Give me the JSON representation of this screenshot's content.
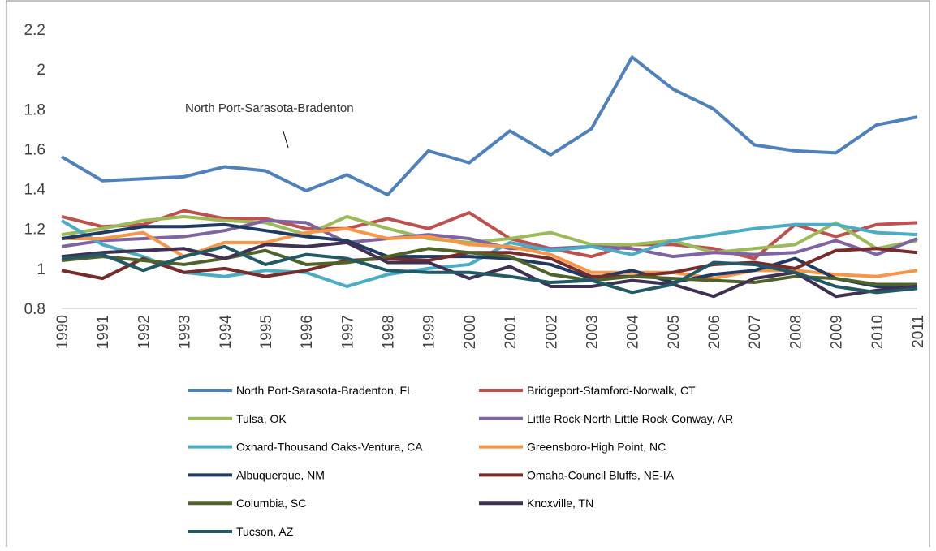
{
  "chart_data": {
    "type": "line",
    "annotation": "North Port-Sarasota-Bradenton",
    "categories": [
      "1990",
      "1991",
      "1992",
      "1993",
      "1994",
      "1995",
      "1996",
      "1997",
      "1998",
      "1999",
      "2000",
      "2001",
      "2002",
      "2003",
      "2004",
      "2005",
      "2006",
      "2007",
      "2008",
      "2009",
      "2010",
      "2011"
    ],
    "ylim": [
      0.8,
      2.2
    ],
    "yticks": [
      0.8,
      1,
      1.2,
      1.4,
      1.6,
      1.8,
      2,
      2.2
    ],
    "grid": false,
    "series": [
      {
        "name": "North Port-Sarasota-Bradenton, FL",
        "color": "#4f81bd",
        "values": [
          1.56,
          1.44,
          1.45,
          1.46,
          1.51,
          1.49,
          1.39,
          1.47,
          1.37,
          1.59,
          1.53,
          1.69,
          1.57,
          1.7,
          2.06,
          1.9,
          1.8,
          1.62,
          1.59,
          1.58,
          1.72,
          1.76
        ]
      },
      {
        "name": "Bridgeport-Stamford-Norwalk, CT",
        "color": "#c0504d",
        "values": [
          1.26,
          1.21,
          1.22,
          1.29,
          1.25,
          1.25,
          1.2,
          1.2,
          1.25,
          1.2,
          1.28,
          1.15,
          1.1,
          1.06,
          1.12,
          1.12,
          1.1,
          1.05,
          1.22,
          1.16,
          1.22,
          1.23
        ]
      },
      {
        "name": "Tulsa, OK",
        "color": "#9bbb59",
        "values": [
          1.17,
          1.2,
          1.24,
          1.26,
          1.24,
          1.23,
          1.17,
          1.26,
          1.2,
          1.15,
          1.13,
          1.15,
          1.18,
          1.12,
          1.12,
          1.14,
          1.08,
          1.1,
          1.12,
          1.23,
          1.1,
          1.14
        ]
      },
      {
        "name": "Little Rock-North Little Rock-Conway, AR",
        "color": "#8064a2",
        "values": [
          1.11,
          1.14,
          1.15,
          1.16,
          1.19,
          1.24,
          1.23,
          1.13,
          1.15,
          1.17,
          1.15,
          1.1,
          1.1,
          1.11,
          1.1,
          1.06,
          1.08,
          1.07,
          1.08,
          1.14,
          1.07,
          1.15
        ]
      },
      {
        "name": "Oxnard-Thousand Oaks-Ventura, CA",
        "color": "#4bacc6",
        "values": [
          1.24,
          1.12,
          1.06,
          0.98,
          0.96,
          0.99,
          0.98,
          0.91,
          0.97,
          1.0,
          1.02,
          1.13,
          1.09,
          1.11,
          1.07,
          1.14,
          1.17,
          1.2,
          1.22,
          1.22,
          1.18,
          1.17
        ]
      },
      {
        "name": "Greensboro-High Point, NC",
        "color": "#f79646",
        "values": [
          1.15,
          1.15,
          1.18,
          1.06,
          1.13,
          1.13,
          1.18,
          1.2,
          1.15,
          1.16,
          1.12,
          1.11,
          1.07,
          0.98,
          0.98,
          0.98,
          0.95,
          0.99,
          0.99,
          0.97,
          0.96,
          0.99
        ]
      },
      {
        "name": "Albuquerque, NM",
        "color": "#1f3b63",
        "values": [
          1.15,
          1.18,
          1.21,
          1.21,
          1.22,
          1.19,
          1.16,
          1.14,
          1.06,
          1.06,
          1.06,
          1.05,
          1.02,
          0.95,
          0.99,
          0.93,
          0.97,
          0.99,
          1.05,
          0.95,
          0.91,
          0.9
        ]
      },
      {
        "name": "Omaha-Council Bluffs, NE-IA",
        "color": "#772c2a",
        "values": [
          0.99,
          0.95,
          1.05,
          0.98,
          1.0,
          0.96,
          0.99,
          1.04,
          1.05,
          1.04,
          1.08,
          1.08,
          1.05,
          0.96,
          0.96,
          0.98,
          1.02,
          1.03,
          1.0,
          1.09,
          1.1,
          1.08
        ]
      },
      {
        "name": "Columbia, SC",
        "color": "#4f6228",
        "values": [
          1.04,
          1.06,
          1.04,
          1.02,
          1.05,
          1.09,
          1.02,
          1.03,
          1.06,
          1.1,
          1.08,
          1.06,
          0.97,
          0.94,
          0.96,
          0.95,
          0.94,
          0.93,
          0.96,
          0.95,
          0.92,
          0.92
        ]
      },
      {
        "name": "Knoxville, TN",
        "color": "#403152",
        "values": [
          1.06,
          1.08,
          1.09,
          1.1,
          1.05,
          1.12,
          1.11,
          1.13,
          1.03,
          1.03,
          0.95,
          1.01,
          0.91,
          0.91,
          0.94,
          0.92,
          0.86,
          0.95,
          0.98,
          0.86,
          0.89,
          0.91
        ]
      },
      {
        "name": "Tucson, AZ",
        "color": "#215967",
        "values": [
          1.05,
          1.07,
          0.99,
          1.06,
          1.11,
          1.02,
          1.07,
          1.05,
          0.99,
          0.98,
          0.98,
          0.96,
          0.93,
          0.94,
          0.88,
          0.92,
          1.03,
          1.02,
          0.98,
          0.91,
          0.88,
          0.9
        ]
      }
    ]
  }
}
